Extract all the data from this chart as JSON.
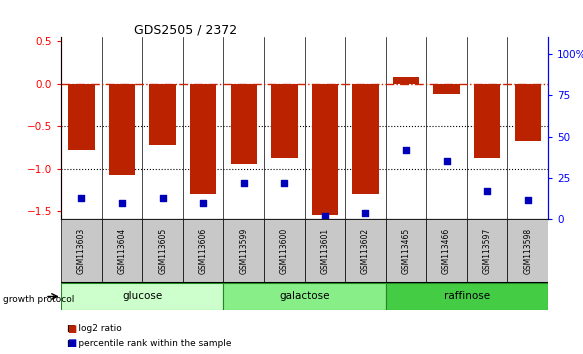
{
  "title": "GDS2505 / 2372",
  "samples": [
    "GSM113603",
    "GSM113604",
    "GSM113605",
    "GSM113606",
    "GSM113599",
    "GSM113600",
    "GSM113601",
    "GSM113602",
    "GSM113465",
    "GSM113466",
    "GSM113597",
    "GSM113598"
  ],
  "log2_ratio": [
    -0.78,
    -1.07,
    -0.72,
    -1.3,
    -0.95,
    -0.87,
    -1.55,
    -1.3,
    0.08,
    -0.12,
    -0.87,
    -0.68
  ],
  "percentile_rank": [
    13,
    10,
    13,
    10,
    22,
    22,
    2,
    4,
    42,
    35,
    17,
    12
  ],
  "groups": [
    {
      "label": "glucose",
      "start": 0,
      "end": 4,
      "color": "#ccffcc"
    },
    {
      "label": "galactose",
      "start": 4,
      "end": 8,
      "color": "#88ee88"
    },
    {
      "label": "raffinose",
      "start": 8,
      "end": 12,
      "color": "#44cc44"
    }
  ],
  "bar_color": "#bb2200",
  "dot_color": "#0000bb",
  "zero_line_color": "#cc2200",
  "ylim_left": [
    -1.6,
    0.55
  ],
  "ylim_right": [
    0,
    110
  ],
  "yticks_left": [
    0.5,
    0.0,
    -0.5,
    -1.0,
    -1.5
  ],
  "yticks_right": [
    0,
    25,
    50,
    75,
    100
  ],
  "dotted_line_y": [
    -0.5,
    -1.0
  ],
  "legend_items": [
    {
      "label": "log2 ratio",
      "color": "#bb2200"
    },
    {
      "label": "percentile rank within the sample",
      "color": "#0000bb"
    }
  ]
}
